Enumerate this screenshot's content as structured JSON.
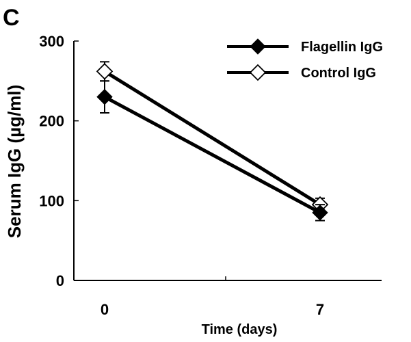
{
  "panel_label": "C",
  "chart_data": {
    "type": "line",
    "title": "",
    "xlabel": "Time (days)",
    "ylabel": "Serum IgG (µg/ml)",
    "categories": [
      "0",
      "7"
    ],
    "x_range": [
      -1,
      9
    ],
    "ylim": [
      0,
      300
    ],
    "yticks": [
      0,
      100,
      200,
      300
    ],
    "grid": false,
    "legend_position": "top-right",
    "series": [
      {
        "name": "Flagellin IgG",
        "marker": "filled-diamond",
        "color": "#000000",
        "values": [
          230,
          85
        ],
        "errors": [
          20,
          10
        ]
      },
      {
        "name": "Control IgG",
        "marker": "open-diamond",
        "color": "#000000",
        "values": [
          262,
          95
        ],
        "errors": [
          12,
          8
        ]
      }
    ]
  }
}
